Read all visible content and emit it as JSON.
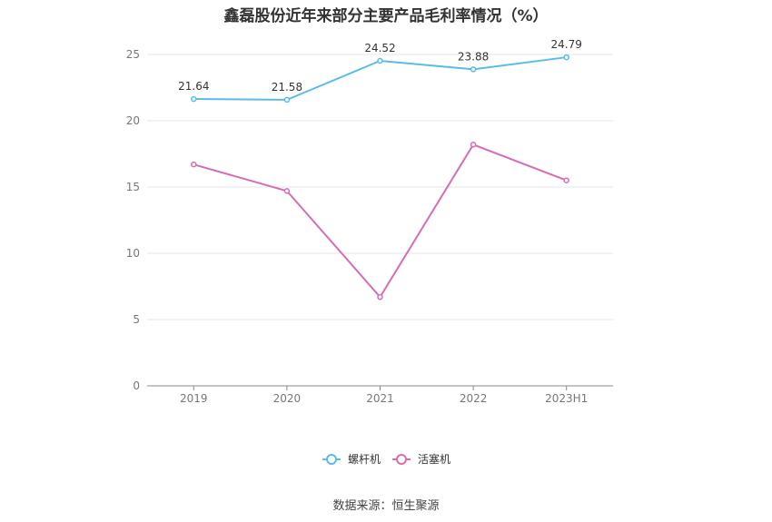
{
  "title": "鑫磊股份近年来部分主要产品毛利率情况（%）",
  "source": "数据来源：恒生聚源",
  "chart_data": {
    "type": "line",
    "categories": [
      "2019",
      "2020",
      "2021",
      "2022",
      "2023H1"
    ],
    "y_ticks": [
      "0",
      "5",
      "10",
      "15",
      "20",
      "25"
    ],
    "ylim": [
      0,
      25
    ],
    "grid": true,
    "legend_position": "bottom",
    "series": [
      {
        "name": "螺杆机",
        "values": [
          21.64,
          21.58,
          24.52,
          23.88,
          24.79
        ],
        "color": "#5bbbe8",
        "labels": [
          "21.64",
          "21.58",
          "24.52",
          "23.88",
          "24.79"
        ]
      },
      {
        "name": "活塞机",
        "values": [
          16.7,
          14.7,
          6.7,
          18.2,
          15.5
        ],
        "color": "#d66db4",
        "labels": []
      }
    ]
  }
}
